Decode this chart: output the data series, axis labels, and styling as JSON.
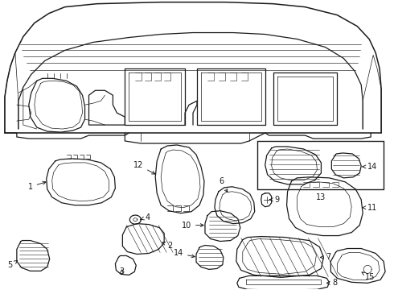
{
  "bg_color": "#ffffff",
  "line_color": "#1a1a1a",
  "fig_width": 4.9,
  "fig_height": 3.6,
  "dpi": 100,
  "font_size": 7.0,
  "lw_main": 0.9,
  "lw_thin": 0.5,
  "lw_thick": 1.1
}
